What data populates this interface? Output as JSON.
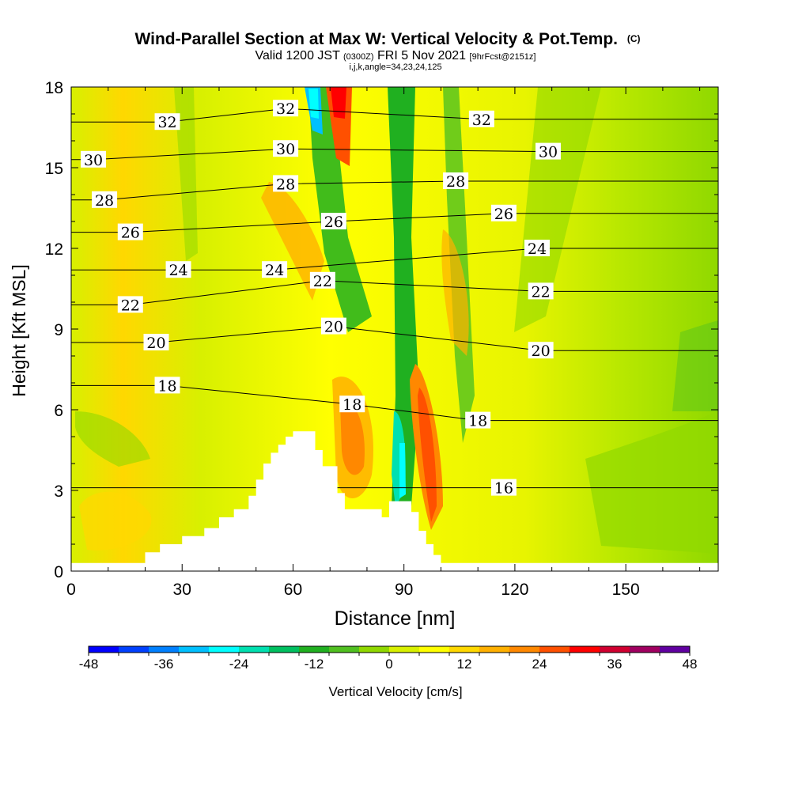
{
  "title": "Wind-Parallel Section at Max W: Vertical Velocity & Pot.Temp.",
  "title_unit": "(C)",
  "subtitle_valid": "Valid 1200 JST",
  "subtitle_utc": "(0300Z)",
  "subtitle_date": "FRI 5 Nov 2021",
  "subtitle_fcst": "[9hrFcst@2151z]",
  "subtitle_ijk": "i,j,k,angle=34,23,24,125",
  "chart_data": {
    "type": "heatmap",
    "xlabel": "Distance [nm]",
    "ylabel": "Height [Kft MSL]",
    "xlim": [
      0,
      175
    ],
    "ylim": [
      0,
      18
    ],
    "x_ticks": [
      "0",
      "30",
      "60",
      "90",
      "120",
      "150"
    ],
    "y_ticks": [
      "0",
      "3",
      "6",
      "9",
      "12",
      "15",
      "18"
    ],
    "colorbar": {
      "label": "Vertical Velocity [cm/s]",
      "ticks": [
        "-48",
        "-36",
        "-24",
        "-12",
        "0",
        "12",
        "24",
        "36",
        "48"
      ],
      "colors": [
        "#0000ff",
        "#0040ff",
        "#0080ff",
        "#00c0ff",
        "#00ffff",
        "#00e0b0",
        "#00c060",
        "#20b020",
        "#50c020",
        "#90d800",
        "#d8f000",
        "#ffff00",
        "#ffd800",
        "#ffb000",
        "#ff8800",
        "#ff5000",
        "#ff0000",
        "#d00030",
        "#a00060",
        "#6000a0"
      ]
    },
    "features": [
      {
        "name": "downdraft",
        "value": -36,
        "x": 68,
        "z0": 16.5,
        "z1": 18
      },
      {
        "name": "updraft",
        "value": 36,
        "x": 73,
        "z0": 15.5,
        "z1": 18
      },
      {
        "name": "updraft",
        "value": 24,
        "x": 96,
        "z0": 1.5,
        "z1": 7
      },
      {
        "name": "downdraft",
        "value": -36,
        "x": 91,
        "z0": 2.5,
        "z1": 5
      }
    ],
    "terrain": [
      [
        0,
        0.3
      ],
      [
        18,
        0.3
      ],
      [
        20,
        0.7
      ],
      [
        24,
        1.0
      ],
      [
        30,
        1.3
      ],
      [
        36,
        1.6
      ],
      [
        40,
        2.0
      ],
      [
        44,
        2.3
      ],
      [
        48,
        2.8
      ],
      [
        50,
        3.4
      ],
      [
        52,
        4.0
      ],
      [
        54,
        4.4
      ],
      [
        56,
        4.7
      ],
      [
        58,
        5.0
      ],
      [
        60,
        5.2
      ],
      [
        64,
        5.2
      ],
      [
        66,
        4.5
      ],
      [
        68,
        3.9
      ],
      [
        70,
        3.9
      ],
      [
        72,
        2.9
      ],
      [
        74,
        2.3
      ],
      [
        80,
        2.3
      ],
      [
        84,
        2.0
      ],
      [
        86,
        2.6
      ],
      [
        90,
        2.6
      ],
      [
        92,
        2.2
      ],
      [
        94,
        1.5
      ],
      [
        96,
        1.0
      ],
      [
        98,
        0.6
      ],
      [
        100,
        0.3
      ],
      [
        175,
        0.3
      ]
    ],
    "isentropes": [
      {
        "value": "16",
        "label_x": 117,
        "label_z": 3.1
      },
      {
        "value": "18",
        "label_x": 26,
        "label_z": 6.9
      },
      {
        "value": "18",
        "label_x": 76,
        "label_z": 6.2
      },
      {
        "value": "18",
        "label_x": 110,
        "label_z": 5.6
      },
      {
        "value": "20",
        "label_x": 23,
        "label_z": 8.5
      },
      {
        "value": "20",
        "label_x": 71,
        "label_z": 9.1
      },
      {
        "value": "20",
        "label_x": 127,
        "label_z": 8.2
      },
      {
        "value": "22",
        "label_x": 16,
        "label_z": 9.9
      },
      {
        "value": "22",
        "label_x": 68,
        "label_z": 10.8
      },
      {
        "value": "22",
        "label_x": 127,
        "label_z": 10.4
      },
      {
        "value": "24",
        "label_x": 29,
        "label_z": 11.2
      },
      {
        "value": "24",
        "label_x": 55,
        "label_z": 11.2
      },
      {
        "value": "24",
        "label_x": 126,
        "label_z": 12.0
      },
      {
        "value": "26",
        "label_x": 16,
        "label_z": 12.6
      },
      {
        "value": "26",
        "label_x": 71,
        "label_z": 13.0
      },
      {
        "value": "26",
        "label_x": 117,
        "label_z": 13.3
      },
      {
        "value": "28",
        "label_x": 9,
        "label_z": 13.8
      },
      {
        "value": "28",
        "label_x": 58,
        "label_z": 14.4
      },
      {
        "value": "28",
        "label_x": 104,
        "label_z": 14.5
      },
      {
        "value": "30",
        "label_x": 6,
        "label_z": 15.3
      },
      {
        "value": "30",
        "label_x": 58,
        "label_z": 15.7
      },
      {
        "value": "30",
        "label_x": 129,
        "label_z": 15.6
      },
      {
        "value": "32",
        "label_x": 26,
        "label_z": 16.7
      },
      {
        "value": "32",
        "label_x": 58,
        "label_z": 17.2
      },
      {
        "value": "32",
        "label_x": 111,
        "label_z": 16.8
      }
    ]
  }
}
